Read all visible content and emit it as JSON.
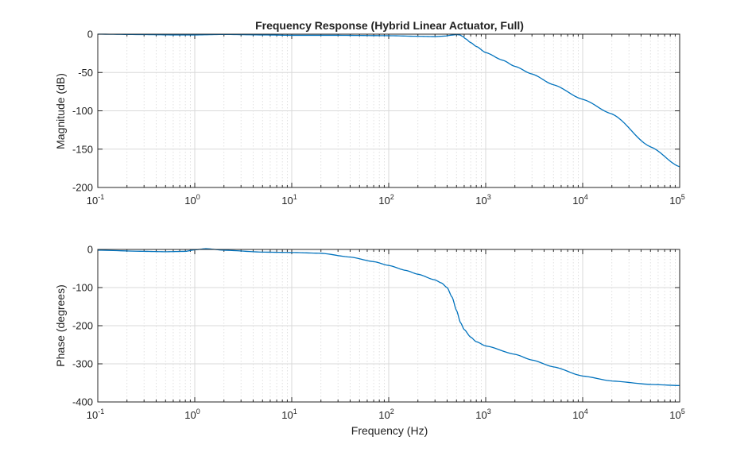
{
  "chart_data": [
    {
      "type": "line",
      "title": "Frequency Response (Hybrid Linear Actuator, Full)",
      "xlabel": "",
      "ylabel": "Magnitude (dB)",
      "xscale": "log",
      "xlim": [
        0.1,
        100000
      ],
      "ylim": [
        -200,
        0
      ],
      "xticks": [
        {
          "base": "10",
          "exp": "-1"
        },
        {
          "base": "10",
          "exp": "0"
        },
        {
          "base": "10",
          "exp": "1"
        },
        {
          "base": "10",
          "exp": "2"
        },
        {
          "base": "10",
          "exp": "3"
        },
        {
          "base": "10",
          "exp": "4"
        },
        {
          "base": "10",
          "exp": "5"
        }
      ],
      "yticks": [
        "0",
        "-50",
        "-100",
        "-150",
        "-200"
      ],
      "ytick_values": [
        0,
        -50,
        -100,
        -150,
        -200
      ],
      "grid": true,
      "color": "#0072bd",
      "series": [
        {
          "name": "Magnitude",
          "x": [
            0.1,
            0.3,
            0.6,
            1,
            2,
            5,
            10,
            30,
            100,
            200,
            300,
            380,
            450,
            500,
            540,
            580,
            620,
            700,
            800,
            1000,
            1500,
            2000,
            3000,
            5000,
            10000,
            20000,
            50000,
            100000
          ],
          "y": [
            0,
            -0.5,
            -1,
            -1,
            -0.3,
            -1,
            -1.5,
            -1.5,
            -2,
            -2.8,
            -3.2,
            -2.5,
            -1.2,
            -0.5,
            -1,
            -3,
            -6,
            -11,
            -16,
            -24,
            -34,
            -42,
            -52,
            -66,
            -85,
            -104,
            -147,
            -173
          ]
        }
      ]
    },
    {
      "type": "line",
      "title": "",
      "xlabel": "Frequency (Hz)",
      "ylabel": "Phase (degrees)",
      "xscale": "log",
      "xlim": [
        0.1,
        100000
      ],
      "ylim": [
        -400,
        0
      ],
      "xticks": [
        {
          "base": "10",
          "exp": "-1"
        },
        {
          "base": "10",
          "exp": "0"
        },
        {
          "base": "10",
          "exp": "1"
        },
        {
          "base": "10",
          "exp": "2"
        },
        {
          "base": "10",
          "exp": "3"
        },
        {
          "base": "10",
          "exp": "4"
        },
        {
          "base": "10",
          "exp": "5"
        }
      ],
      "yticks": [
        "0",
        "-100",
        "-200",
        "-300",
        "-400"
      ],
      "ytick_values": [
        0,
        -100,
        -200,
        -300,
        -400
      ],
      "grid": true,
      "color": "#0072bd",
      "series": [
        {
          "name": "Phase",
          "x": [
            0.1,
            0.3,
            0.5,
            0.8,
            1,
            1.3,
            2,
            5,
            10,
            20,
            40,
            70,
            100,
            150,
            200,
            300,
            350,
            400,
            450,
            500,
            550,
            600,
            700,
            800,
            1000,
            2000,
            3000,
            5000,
            10000,
            20000,
            50000,
            100000
          ],
          "y": [
            -2,
            -5,
            -6,
            -5,
            -1,
            2,
            -2,
            -7,
            -8,
            -10,
            -20,
            -32,
            -42,
            -55,
            -65,
            -80,
            -88,
            -100,
            -125,
            -160,
            -192,
            -210,
            -230,
            -242,
            -253,
            -275,
            -290,
            -308,
            -332,
            -345,
            -354,
            -357
          ]
        }
      ]
    }
  ]
}
